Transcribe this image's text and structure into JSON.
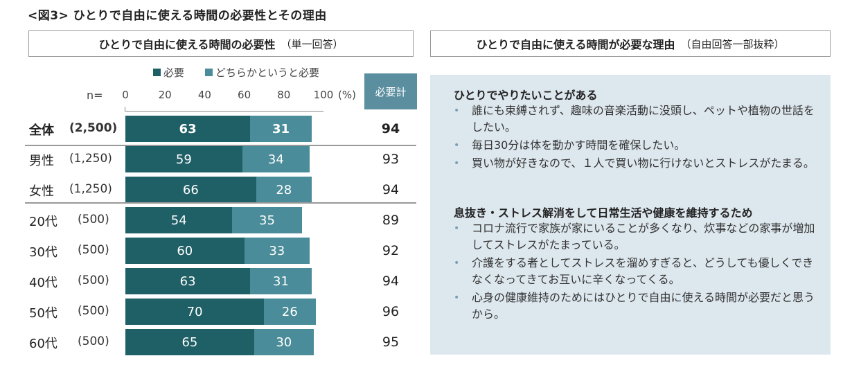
{
  "figure_title": "<図3> ひとりで自由に使える時間の必要性とその理由",
  "left_panel": {
    "title": "ひとりで自由に使える時間の必要性",
    "subtitle": "（単一回答）"
  },
  "right_panel": {
    "title": "ひとりで自由に使える時間が必要な理由",
    "subtitle": "（自由回答一部抜粋）",
    "sections": [
      {
        "heading": "ひとりでやりたいことがある",
        "items": [
          "誰にも束縛されず、趣味の音楽活動に没頭し、ペットや植物の世話をしたい。",
          "毎日30分は体を動かす時間を確保したい。",
          "買い物が好きなので、１人で買い物に行けないとストレスがたまる。"
        ]
      },
      {
        "heading": "息抜き・ストレス解消をして日常生活や健康を維持するため",
        "items": [
          "コロナ流行で家族が家にいることが多くなり、炊事などの家事が増加してストレスがたまっている。",
          "介護をする者としてストレスを溜めすぎると、どうしても優しくできなくなってきてお互いに辛くなってくる。",
          "心身の健康維持のためにはひとりで自由に使える時間が必要だと思うから。"
        ]
      }
    ]
  },
  "chart_data": {
    "type": "bar",
    "orientation": "horizontal",
    "stacked": true,
    "title": "ひとりで自由に使える時間の必要性（単一回答）",
    "n_label": "n=",
    "unit_label": "(%)",
    "total_header": "必要計",
    "xlim": [
      0,
      100
    ],
    "ticks": [
      "0",
      "20",
      "40",
      "60",
      "80",
      "100"
    ],
    "categories": [
      {
        "label": "全体",
        "n": "(2,500)",
        "bold": true
      },
      {
        "label": "男性",
        "n": "(1,250)",
        "bold": false
      },
      {
        "label": "女性",
        "n": "(1,250)",
        "bold": false
      },
      {
        "label": "20代",
        "n": "(500)",
        "bold": false
      },
      {
        "label": "30代",
        "n": "(500)",
        "bold": false
      },
      {
        "label": "40代",
        "n": "(500)",
        "bold": false
      },
      {
        "label": "50代",
        "n": "(500)",
        "bold": false
      },
      {
        "label": "60代",
        "n": "(500)",
        "bold": false
      }
    ],
    "series": [
      {
        "name": "必要",
        "color": "#1f5f66",
        "values": [
          63,
          59,
          66,
          54,
          60,
          63,
          70,
          65
        ]
      },
      {
        "name": "どちらかというと必要",
        "color": "#4a8c99",
        "values": [
          31,
          34,
          28,
          35,
          33,
          31,
          26,
          30
        ]
      }
    ],
    "totals": [
      94,
      93,
      94,
      89,
      92,
      94,
      96,
      95
    ]
  }
}
